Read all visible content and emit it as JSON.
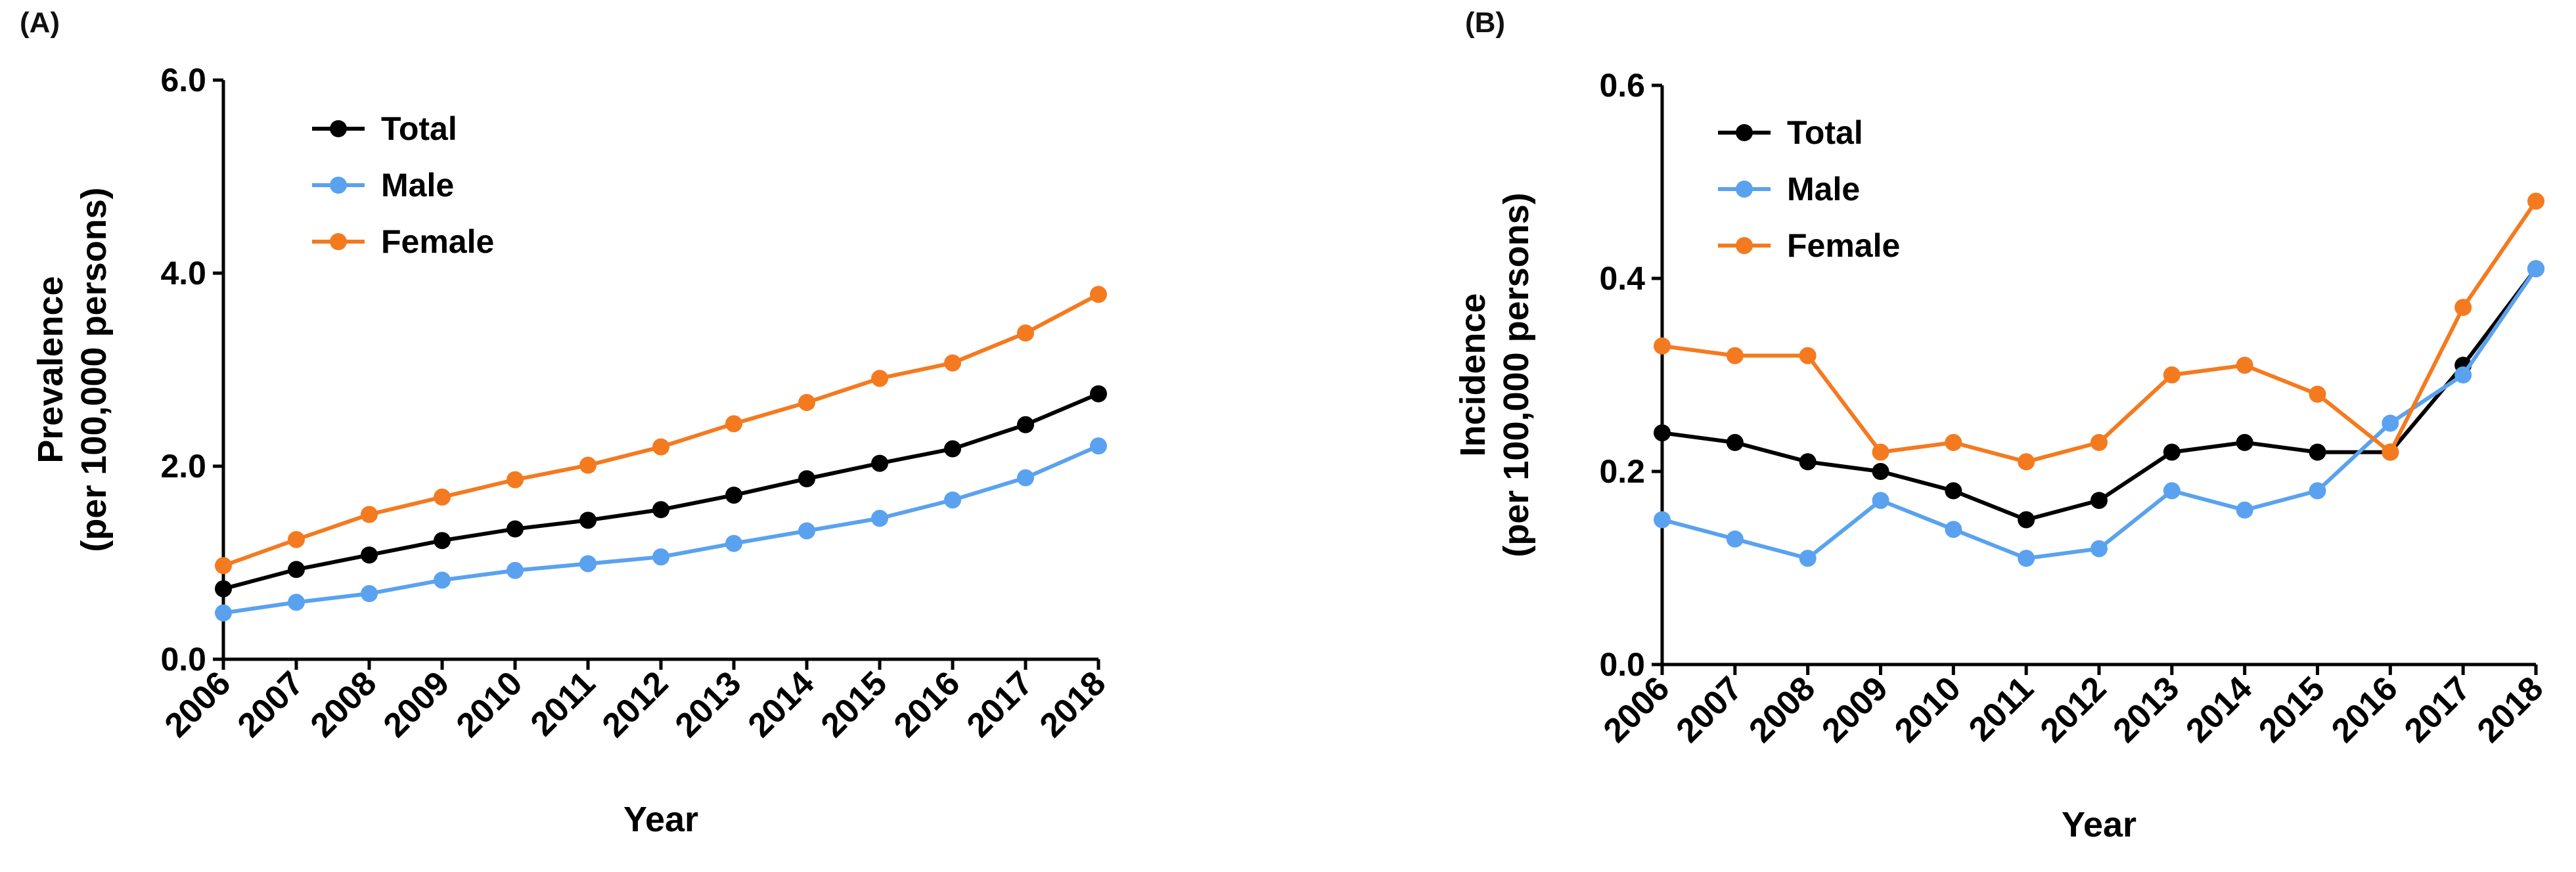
{
  "chart_data": [
    {
      "panel_label": "(A)",
      "type": "line",
      "xlabel": "Year",
      "ylabel_lines": [
        "Prevalence",
        "(per 100,000 persons)"
      ],
      "ylim": [
        0,
        6
      ],
      "yticks": [
        "0.0",
        "2.0",
        "4.0",
        "6.0"
      ],
      "ytick_values": [
        0,
        2,
        4,
        6
      ],
      "categories": [
        "2006",
        "2007",
        "2008",
        "2009",
        "2010",
        "2011",
        "2012",
        "2013",
        "2014",
        "2015",
        "2016",
        "2017",
        "2018"
      ],
      "legend_position": "top-left",
      "grid": false,
      "series": [
        {
          "name": "Total",
          "color": "#000000",
          "values": [
            0.73,
            0.93,
            1.08,
            1.23,
            1.35,
            1.44,
            1.55,
            1.7,
            1.87,
            2.03,
            2.18,
            2.43,
            2.75
          ]
        },
        {
          "name": "Male",
          "color": "#5aa2ef",
          "values": [
            0.48,
            0.59,
            0.68,
            0.82,
            0.92,
            0.99,
            1.06,
            1.2,
            1.33,
            1.46,
            1.65,
            1.88,
            2.21
          ]
        },
        {
          "name": "Female",
          "color": "#f47a20",
          "values": [
            0.97,
            1.24,
            1.5,
            1.68,
            1.86,
            2.01,
            2.2,
            2.44,
            2.66,
            2.91,
            3.07,
            3.38,
            3.78
          ]
        }
      ]
    },
    {
      "panel_label": "(B)",
      "type": "line",
      "xlabel": "Year",
      "ylabel_lines": [
        "Incidence",
        "(per 100,000 persons)"
      ],
      "ylim": [
        0,
        0.6
      ],
      "yticks": [
        "0.0",
        "0.2",
        "0.4",
        "0.6"
      ],
      "ytick_values": [
        0,
        0.2,
        0.4,
        0.6
      ],
      "categories": [
        "2006",
        "2007",
        "2008",
        "2009",
        "2010",
        "2011",
        "2012",
        "2013",
        "2014",
        "2015",
        "2016",
        "2017",
        "2018"
      ],
      "legend_position": "top-left",
      "grid": false,
      "series": [
        {
          "name": "Total",
          "color": "#000000",
          "values": [
            0.24,
            0.23,
            0.21,
            0.2,
            0.18,
            0.15,
            0.17,
            0.22,
            0.23,
            0.22,
            0.22,
            0.31,
            0.41
          ]
        },
        {
          "name": "Male",
          "color": "#5aa2ef",
          "values": [
            0.15,
            0.13,
            0.11,
            0.17,
            0.14,
            0.11,
            0.12,
            0.18,
            0.16,
            0.18,
            0.25,
            0.3,
            0.41
          ]
        },
        {
          "name": "Female",
          "color": "#f47a20",
          "values": [
            0.33,
            0.32,
            0.32,
            0.22,
            0.23,
            0.21,
            0.23,
            0.3,
            0.31,
            0.28,
            0.22,
            0.37,
            0.48
          ]
        }
      ]
    }
  ]
}
